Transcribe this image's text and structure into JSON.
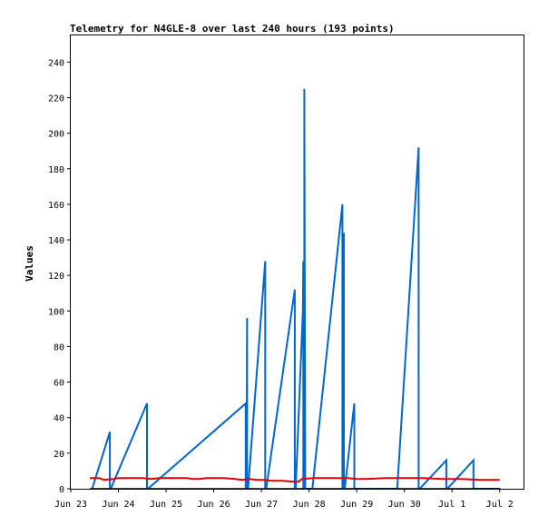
{
  "chart_data": {
    "type": "line",
    "title": "Telemetry for N4GLE-8 over last 240 hours (193 points)",
    "xlabel": "",
    "ylabel": "Values",
    "x_tick_labels": [
      "Jun 23",
      "Jun 24",
      "Jun 25",
      "Jun 26",
      "Jun 27",
      "Jun 28",
      "Jun 29",
      "Jun 30",
      "Jul 1",
      "Jul 2"
    ],
    "y_ticks": [
      0,
      20,
      40,
      60,
      80,
      100,
      120,
      140,
      160,
      180,
      200,
      220,
      240
    ],
    "xlim": [
      0,
      9.5
    ],
    "ylim": [
      0,
      255
    ],
    "grid": false,
    "legend": "none",
    "series": [
      {
        "color": "#0066cc",
        "x": [
          0.45,
          0.82,
          0.82,
          0.84,
          1.6,
          1.6,
          1.62,
          3.67,
          3.67,
          3.69,
          3.7,
          3.7,
          3.72,
          4.08,
          4.08,
          4.1,
          4.7,
          4.7,
          4.72,
          4.87,
          4.88,
          4.88,
          4.9,
          4.9,
          4.92,
          5.0,
          5.0,
          5.02,
          5.05,
          5.05,
          5.07,
          5.7,
          5.7,
          5.72,
          5.73,
          5.73,
          5.75,
          5.95,
          5.95,
          5.97,
          6.85,
          7.3,
          7.3,
          7.32,
          7.88,
          7.88,
          7.9,
          8.45,
          8.45,
          8.47,
          8.95,
          8.95,
          8.97,
          9.02
        ],
        "y": [
          0,
          32,
          0,
          0,
          48,
          0,
          0,
          48,
          0,
          0,
          96,
          0,
          0,
          128,
          0,
          0,
          112,
          0,
          0,
          100,
          128,
          0,
          0,
          225,
          0,
          0,
          0,
          0,
          0,
          0,
          0,
          160,
          0,
          0,
          144,
          0,
          0,
          48,
          0,
          0,
          0,
          192,
          0,
          0,
          16,
          0,
          0,
          16,
          0,
          0,
          0,
          0,
          0,
          0
        ]
      },
      {
        "color": "#dd0000",
        "x": [
          0.4,
          0.6,
          0.7,
          0.9,
          1.0,
          1.3,
          1.5,
          1.7,
          1.85,
          2.0,
          2.2,
          2.45,
          2.55,
          2.7,
          2.85,
          3.0,
          3.2,
          3.45,
          3.6,
          3.75,
          3.9,
          4.05,
          4.2,
          4.45,
          4.7,
          4.78,
          4.85,
          5.1,
          5.5,
          5.8,
          6.0,
          6.2,
          6.6,
          7.0,
          7.4,
          7.8,
          8.2,
          8.6,
          9.0
        ],
        "y": [
          6,
          6,
          5,
          5.5,
          6,
          6,
          6,
          5.5,
          6,
          6,
          6,
          6,
          5.5,
          5.5,
          6,
          6,
          6,
          5.5,
          5,
          5.5,
          5,
          5,
          4.5,
          4.5,
          4,
          4,
          5.5,
          6,
          6,
          6,
          5.5,
          5.5,
          6,
          6,
          6,
          5.5,
          5.5,
          5,
          5
        ]
      },
      {
        "color": "#000000",
        "x": [
          0.4,
          9.0
        ],
        "y": [
          0,
          0
        ]
      }
    ]
  }
}
